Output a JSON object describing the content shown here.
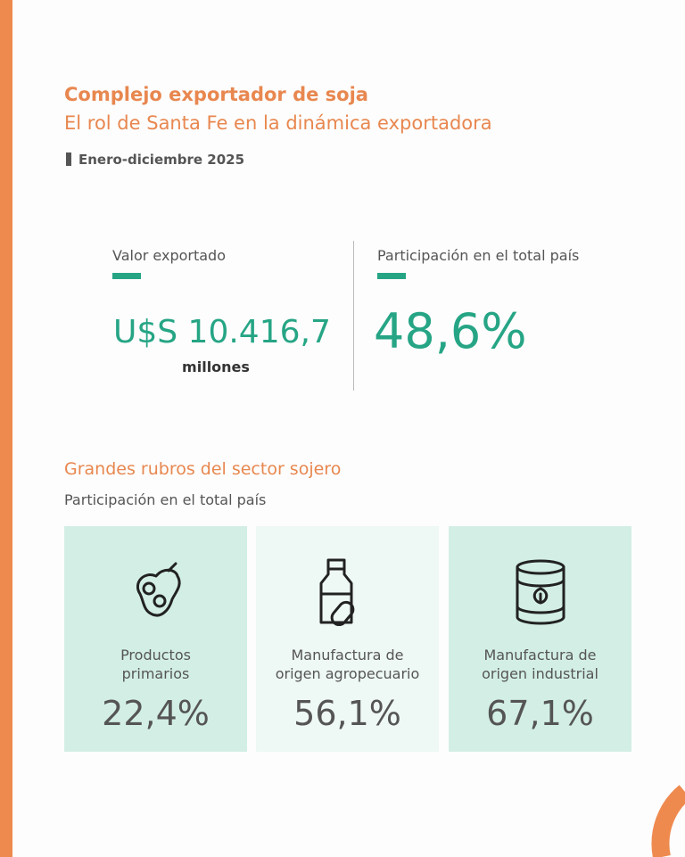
{
  "header": {
    "title": "Complejo exportador de soja",
    "subtitle": "El rol de Santa Fe en la dinámica exportadora",
    "period": "Enero-diciembre 2025"
  },
  "kpis": [
    {
      "label": "Valor exportado",
      "value": "U$S 10.416,7",
      "unit": "millones"
    },
    {
      "label": "Participación en el total país",
      "value": "48,6%"
    }
  ],
  "section": {
    "title": "Grandes rubros del sector sojero",
    "subtitle": "Participación en el total país",
    "cards": [
      {
        "label_lines": [
          "Productos",
          "primarios"
        ],
        "value": "22,4%"
      },
      {
        "label_lines": [
          "Manufactura de",
          "origen agropecuario"
        ],
        "value": "56,1%"
      },
      {
        "label_lines": [
          "Manufactura de",
          "origen industrial"
        ],
        "value": "67,1%"
      }
    ]
  }
}
